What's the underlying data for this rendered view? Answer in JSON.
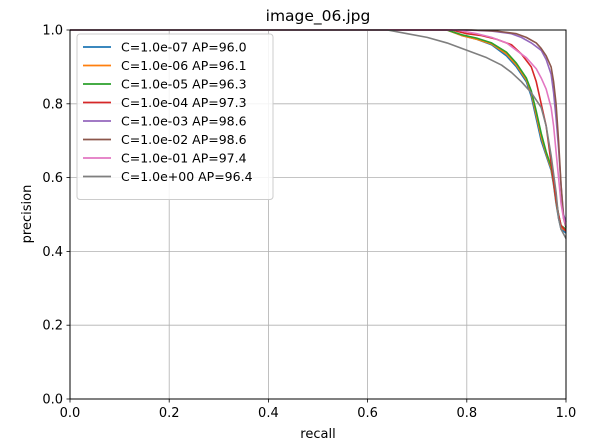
{
  "chart_data": {
    "type": "line",
    "title": "image_06.jpg",
    "xlabel": "recall",
    "ylabel": "precision",
    "xlim": [
      0,
      1
    ],
    "ylim": [
      0,
      1
    ],
    "xticks": [
      "0.0",
      "0.2",
      "0.4",
      "0.6",
      "0.8",
      "1.0"
    ],
    "yticks": [
      "0.0",
      "0.2",
      "0.4",
      "0.6",
      "0.8",
      "1.0"
    ],
    "grid": true,
    "legend_position": "top-left",
    "series": [
      {
        "name": "C=1.0e-07 AP=96.0",
        "color": "#1f77b4",
        "x": [
          0.0,
          0.76,
          0.79,
          0.82,
          0.85,
          0.88,
          0.9,
          0.92,
          0.93,
          0.94,
          0.95,
          0.96,
          0.97,
          0.975,
          0.98,
          0.985,
          0.99,
          1.0
        ],
        "y": [
          1.0,
          1.0,
          0.985,
          0.975,
          0.96,
          0.93,
          0.9,
          0.86,
          0.82,
          0.76,
          0.7,
          0.66,
          0.62,
          0.58,
          0.53,
          0.49,
          0.46,
          0.45
        ]
      },
      {
        "name": "C=1.0e-06 AP=96.1",
        "color": "#ff7f0e",
        "x": [
          0.0,
          0.76,
          0.79,
          0.82,
          0.85,
          0.88,
          0.9,
          0.92,
          0.93,
          0.94,
          0.95,
          0.96,
          0.97,
          0.975,
          0.98,
          0.985,
          0.99,
          1.0
        ],
        "y": [
          1.0,
          1.0,
          0.985,
          0.975,
          0.962,
          0.935,
          0.905,
          0.865,
          0.83,
          0.77,
          0.71,
          0.665,
          0.625,
          0.585,
          0.535,
          0.495,
          0.465,
          0.455
        ]
      },
      {
        "name": "C=1.0e-05 AP=96.3",
        "color": "#2ca02c",
        "x": [
          0.0,
          0.76,
          0.79,
          0.82,
          0.85,
          0.88,
          0.9,
          0.92,
          0.93,
          0.94,
          0.95,
          0.96,
          0.97,
          0.975,
          0.98,
          0.985,
          0.99,
          1.0
        ],
        "y": [
          1.0,
          1.0,
          0.987,
          0.978,
          0.965,
          0.94,
          0.91,
          0.87,
          0.835,
          0.78,
          0.72,
          0.67,
          0.63,
          0.59,
          0.54,
          0.5,
          0.47,
          0.46
        ]
      },
      {
        "name": "C=1.0e-04 AP=97.3",
        "color": "#d62728",
        "x": [
          0.0,
          0.77,
          0.8,
          0.83,
          0.86,
          0.89,
          0.91,
          0.93,
          0.94,
          0.95,
          0.96,
          0.965,
          0.97,
          0.975,
          0.98,
          0.985,
          0.99,
          1.0
        ],
        "y": [
          1.0,
          1.0,
          0.99,
          0.985,
          0.975,
          0.96,
          0.935,
          0.9,
          0.86,
          0.8,
          0.74,
          0.69,
          0.64,
          0.59,
          0.54,
          0.5,
          0.47,
          0.455
        ]
      },
      {
        "name": "C=1.0e-03 AP=98.6",
        "color": "#9467bd",
        "x": [
          0.0,
          0.8,
          0.85,
          0.89,
          0.91,
          0.93,
          0.95,
          0.96,
          0.97,
          0.975,
          0.98,
          0.985,
          0.99,
          0.995,
          1.0
        ],
        "y": [
          1.0,
          1.0,
          0.997,
          0.99,
          0.98,
          0.965,
          0.945,
          0.92,
          0.88,
          0.83,
          0.76,
          0.68,
          0.58,
          0.5,
          0.48
        ]
      },
      {
        "name": "C=1.0e-02 AP=98.6",
        "color": "#8c564b",
        "x": [
          0.0,
          0.81,
          0.86,
          0.9,
          0.92,
          0.94,
          0.95,
          0.96,
          0.97,
          0.975,
          0.98,
          0.985,
          0.99,
          0.995,
          1.0
        ],
        "y": [
          1.0,
          1.0,
          0.997,
          0.99,
          0.98,
          0.965,
          0.95,
          0.93,
          0.9,
          0.86,
          0.8,
          0.7,
          0.58,
          0.49,
          0.465
        ]
      },
      {
        "name": "C=1.0e-01 AP=97.4",
        "color": "#e377c2",
        "x": [
          0.0,
          0.78,
          0.82,
          0.85,
          0.88,
          0.9,
          0.92,
          0.94,
          0.95,
          0.96,
          0.97,
          0.975,
          0.98,
          0.985,
          0.99,
          0.995,
          1.0
        ],
        "y": [
          1.0,
          1.0,
          0.99,
          0.98,
          0.965,
          0.945,
          0.925,
          0.895,
          0.87,
          0.84,
          0.79,
          0.74,
          0.67,
          0.6,
          0.53,
          0.49,
          0.47
        ]
      },
      {
        "name": "C=1.0e+00 AP=96.4",
        "color": "#7f7f7f",
        "x": [
          0.0,
          0.64,
          0.68,
          0.72,
          0.76,
          0.8,
          0.84,
          0.87,
          0.89,
          0.91,
          0.93,
          0.95,
          0.96,
          0.97,
          0.98,
          0.985,
          0.99,
          1.0
        ],
        "y": [
          1.0,
          1.0,
          0.99,
          0.98,
          0.965,
          0.945,
          0.925,
          0.905,
          0.885,
          0.86,
          0.83,
          0.79,
          0.74,
          0.66,
          0.56,
          0.49,
          0.46,
          0.435
        ]
      }
    ]
  }
}
